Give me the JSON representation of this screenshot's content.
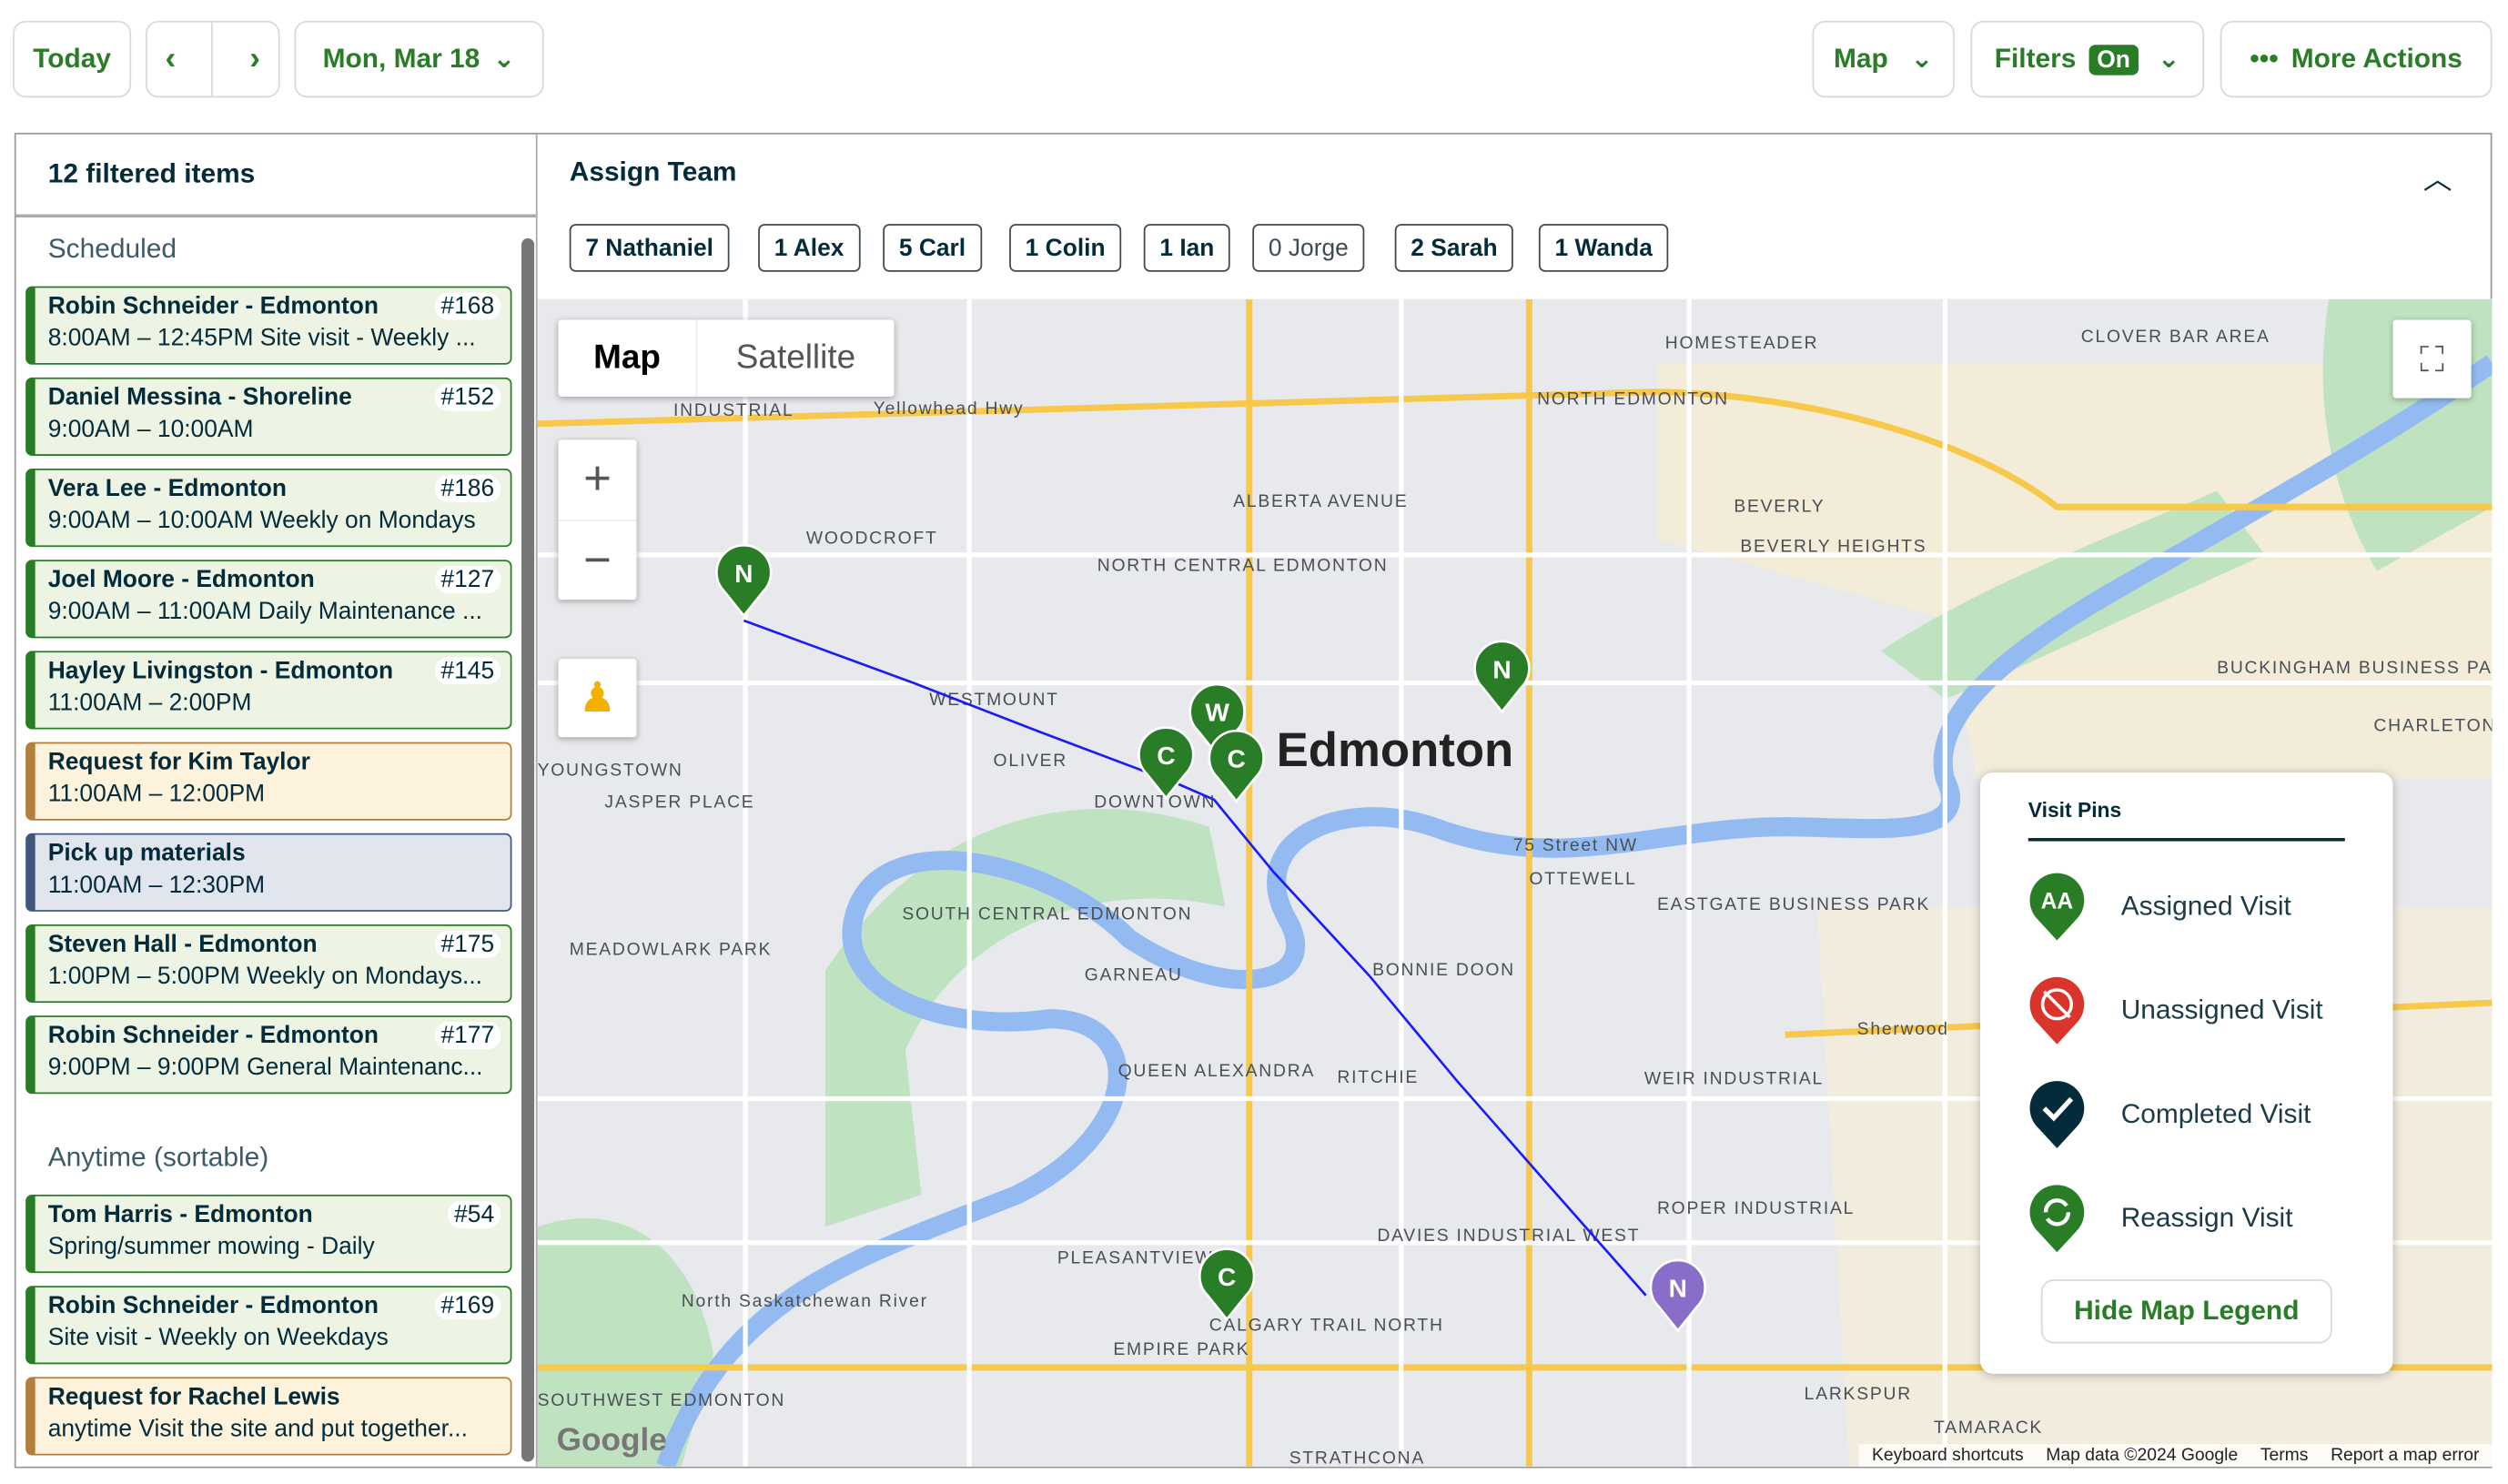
{
  "toolbar": {
    "today": "Today",
    "prev_icon": "chevron-left",
    "next_icon": "chevron-right",
    "date": "Mon, Mar 18",
    "view": "Map",
    "filters": "Filters",
    "filters_state": "On",
    "more": "More Actions"
  },
  "list": {
    "header": "12 filtered items",
    "scheduled_label": "Scheduled",
    "anytime_label": "Anytime (sortable)",
    "scheduled": [
      {
        "title": "Robin Schneider - Edmonton",
        "num": "#168",
        "sub": "8:00AM – 12:45PM Site visit - Weekly ...",
        "kind": "visit"
      },
      {
        "title": "Daniel Messina - Shoreline",
        "num": "#152",
        "sub": "9:00AM – 10:00AM",
        "kind": "visit"
      },
      {
        "title": "Vera Lee - Edmonton",
        "num": "#186",
        "sub": "9:00AM – 10:00AM Weekly on Mondays",
        "kind": "visit"
      },
      {
        "title": "Joel Moore - Edmonton",
        "num": "#127",
        "sub": "9:00AM – 11:00AM Daily Maintenance ...",
        "kind": "visit"
      },
      {
        "title": "Hayley Livingston - Edmonton",
        "num": "#145",
        "sub": "11:00AM – 2:00PM",
        "kind": "visit"
      },
      {
        "title": "Request for Kim Taylor",
        "num": "",
        "sub": "11:00AM – 12:00PM",
        "kind": "request"
      },
      {
        "title": "Pick up materials",
        "num": "",
        "sub": "11:00AM – 12:30PM",
        "kind": "task"
      },
      {
        "title": "Steven Hall - Edmonton",
        "num": "#175",
        "sub": "1:00PM – 5:00PM Weekly on Mondays...",
        "kind": "visit"
      },
      {
        "title": "Robin Schneider - Edmonton",
        "num": "#177",
        "sub": "9:00PM – 9:00PM General Maintenanc...",
        "kind": "visit"
      }
    ],
    "anytime": [
      {
        "title": "Tom Harris - Edmonton",
        "num": "#54",
        "sub": "Spring/summer mowing - Daily",
        "kind": "visit"
      },
      {
        "title": "Robin Schneider - Edmonton",
        "num": "#169",
        "sub": "Site visit - Weekly on Weekdays",
        "kind": "visit"
      },
      {
        "title": "Request for Rachel Lewis",
        "num": "",
        "sub": "anytime Visit the site and put together...",
        "kind": "request"
      }
    ]
  },
  "assign": {
    "title": "Assign Team",
    "team": [
      "7 Nathaniel",
      "1 Alex",
      "5 Carl",
      "1 Colin",
      "1 Ian",
      "0 Jorge",
      "2 Sarah",
      "1 Wanda"
    ]
  },
  "map": {
    "type_map": "Map",
    "type_satellite": "Satellite",
    "zoom_in": "+",
    "zoom_out": "−",
    "city": "Edmonton",
    "labels": [
      "INDUSTRIAL",
      "WOODCROFT",
      "NORTH CENTRAL EDMONTON",
      "ALBERTA AVENUE",
      "HOMESTEADER",
      "NORTH EDMONTON",
      "CLOVER BAR AREA",
      "BEVERLY",
      "BEVERLY HEIGHTS",
      "BUCKINGHAM BUSINESS PARK",
      "CHARLETON HEIGHTS",
      "WESTMOUNT",
      "OLIVER",
      "DOWNTOWN",
      "JASPER PLACE",
      "YOUNGSTOWN",
      "SOUTH CENTRAL EDMONTON",
      "MEADOWLARK PARK",
      "GARNEAU",
      "BONNIE DOON",
      "OTTEWELL",
      "EASTGATE BUSINESS PARK",
      "QUEEN ALEXANDRA",
      "RITCHIE",
      "WEIR INDUSTRIAL",
      "DAVIES INDUSTRIAL WEST",
      "ROPER INDUSTRIAL",
      "PLEASANTVIEW",
      "CALGARY TRAIL NORTH",
      "EMPIRE PARK",
      "LARKSPUR",
      "TAMARACK",
      "STRATHCONA",
      "SOUTHWEST EDMONTON",
      "Yellowhead Hwy",
      "75 Street NW",
      "North Saskatchewan River",
      "Sherwood"
    ],
    "pins": [
      {
        "letter": "N",
        "color": "#2a7d27"
      },
      {
        "letter": "W",
        "color": "#2a7d27"
      },
      {
        "letter": "C",
        "color": "#2a7d27"
      },
      {
        "letter": "C",
        "color": "#2a7d27"
      },
      {
        "letter": "N",
        "color": "#2a7d27"
      },
      {
        "letter": "C",
        "color": "#2a7d27"
      },
      {
        "letter": "N",
        "color": "#8a6cc9"
      }
    ],
    "attribution": [
      "Keyboard shortcuts",
      "Map data ©2024 Google",
      "Terms",
      "Report a map error"
    ],
    "logo": "Google"
  },
  "legend": {
    "title": "Visit Pins",
    "items": [
      {
        "label": "Assigned Visit",
        "icon": "AA",
        "color": "#2a7d27"
      },
      {
        "label": "Unassigned Visit",
        "color": "#d9352c"
      },
      {
        "label": "Completed Visit",
        "color": "#032b3a"
      },
      {
        "label": "Reassign Visit",
        "color": "#2a7d27"
      }
    ],
    "hide": "Hide Map Legend"
  },
  "colors": {
    "brand": "#2a7d27",
    "route": "#1a1aff",
    "request": "#b47e3e",
    "task": "#41587e"
  }
}
